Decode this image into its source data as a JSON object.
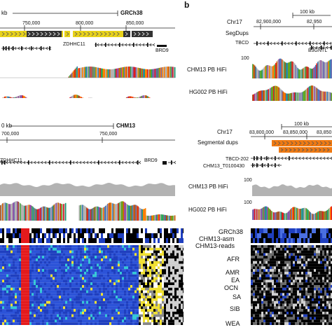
{
  "figure": {
    "panel_b_letter": "b",
    "colors": {
      "segdup_yellow": "#e8d21a",
      "segdup_black": "#333333",
      "segdup_orange": "#f07a12",
      "coverage_gray": "#b3b3b3",
      "heatmap_red": "#e41a1c",
      "heatmap_blue": "#1f3fbf",
      "heatmap_cyan": "#33c7d6",
      "heatmap_yellow": "#f0e030"
    }
  },
  "left_top": {
    "scale_label": "kb",
    "assembly": "GRCh38",
    "ticks": [
      "750,000",
      "800,000",
      "850,000"
    ],
    "gene_main": "ZDHHC11",
    "gene_right": "BRD9"
  },
  "left_mid": {
    "scale_label": "0 kb",
    "assembly": "CHM13",
    "ticks": [
      "700,000",
      "750,000"
    ],
    "gene_main": "ZDHHC11",
    "gene_right": "BRD9"
  },
  "right_top": {
    "scale_label": "100 kb",
    "chrom": "Chr17",
    "ticks": [
      "82,900,000",
      "82,950"
    ],
    "track_segdups": "SegDups",
    "gene_main": "TBCD",
    "gene_second": "B3GNTL",
    "ymax": "100",
    "track_chm13": "CHM13 PB HiFi",
    "track_hg002": "HG002 PB HiFi"
  },
  "right_mid": {
    "scale_label": "100 kb",
    "chrom": "Chr17",
    "ticks": [
      "83,800,000",
      "83,850,000",
      "83,850"
    ],
    "track_segdups": "Segmental dups",
    "gene_main": "TBCD-202",
    "gene_second": "CHM13_T0100430",
    "track_chm13": "CHM13 PB HiFi",
    "track_hg002": "HG002 PB HiFi",
    "ymax_a": "100",
    "ymax_b": "100"
  },
  "right_bottom": {
    "row_labels": [
      "GRCh38",
      "CHM13-asm",
      "CHM13-reads"
    ],
    "populations": [
      "AFR",
      "AMR",
      "EA",
      "OCN",
      "SA",
      "SIB",
      "WEA"
    ]
  }
}
